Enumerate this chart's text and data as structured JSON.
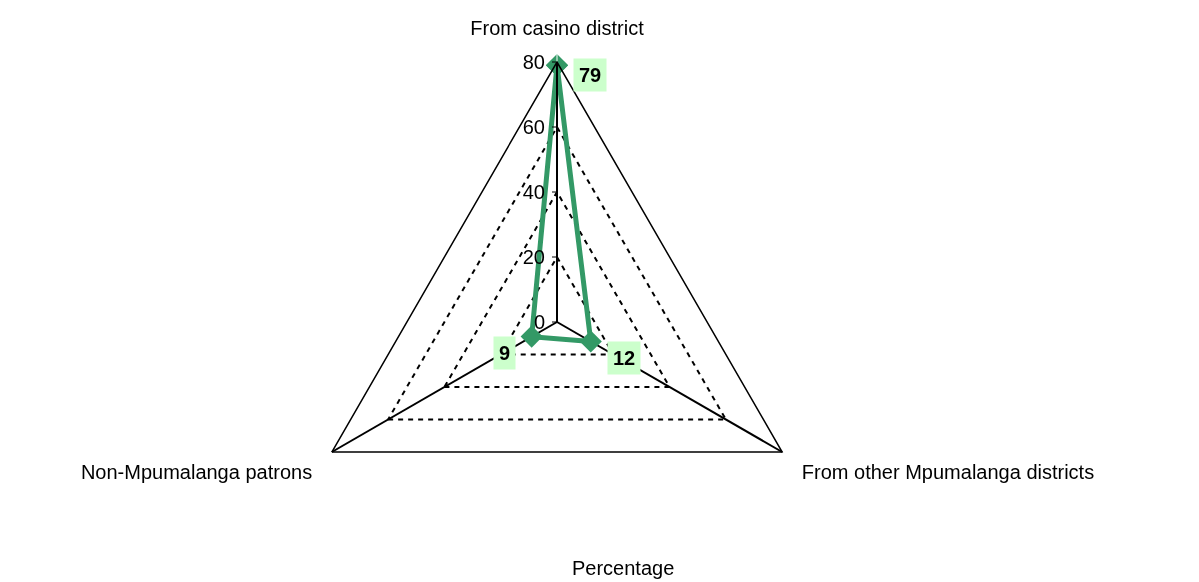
{
  "chart_data": {
    "type": "radar",
    "categories": [
      "From casino district",
      "From other Mpumalanga districts",
      "Non-Mpumalanga patrons"
    ],
    "series": [
      {
        "color": "#339966",
        "values": [
          79,
          12,
          9
        ]
      }
    ],
    "ylim": [
      0,
      80
    ],
    "yticks": [
      0,
      20,
      40,
      60,
      80
    ],
    "data_labels": true,
    "marker": "diamond",
    "grid": true,
    "xlabel": "Percentage"
  }
}
